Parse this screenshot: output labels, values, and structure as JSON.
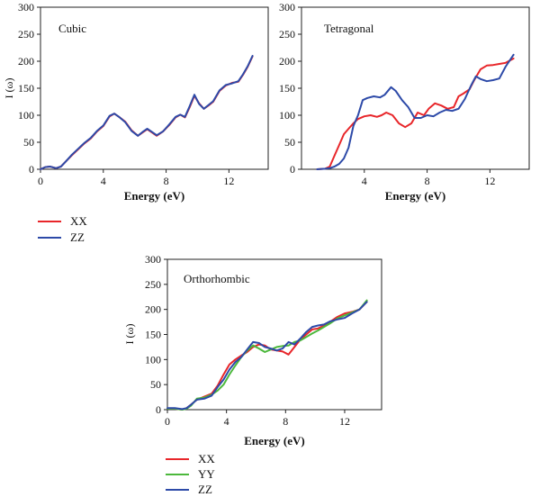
{
  "figure": {
    "legend_top": [
      {
        "label": "XX",
        "color": "#e8262a"
      },
      {
        "label": "ZZ",
        "color": "#2d4aa8"
      }
    ],
    "legend_bottom": [
      {
        "label": "XX",
        "color": "#e8262a"
      },
      {
        "label": "YY",
        "color": "#4cb83c"
      },
      {
        "label": "ZZ",
        "color": "#2d4aa8"
      }
    ]
  },
  "chart_data": [
    {
      "type": "line",
      "title": "Cubic",
      "xlabel": "Energy (eV)",
      "ylabel": "I (ω)",
      "xlim": [
        0,
        14.5
      ],
      "ylim": [
        0,
        300
      ],
      "xticks": [
        0,
        4,
        8,
        12
      ],
      "yticks": [
        0,
        50,
        100,
        150,
        200,
        250,
        300
      ],
      "series": [
        {
          "name": "XX",
          "color": "#e8262a",
          "x": [
            0,
            0.3,
            0.6,
            1.0,
            1.3,
            1.6,
            2.0,
            2.4,
            2.8,
            3.2,
            3.6,
            4.0,
            4.4,
            4.7,
            5.0,
            5.4,
            5.8,
            6.2,
            6.5,
            6.8,
            7.1,
            7.4,
            7.8,
            8.2,
            8.6,
            8.9,
            9.2,
            9.5,
            9.8,
            10.1,
            10.4,
            10.7,
            11.0,
            11.4,
            11.8,
            12.2,
            12.6,
            12.9,
            13.2,
            13.5
          ],
          "y": [
            0,
            4,
            5,
            2,
            5,
            14,
            26,
            37,
            48,
            57,
            70,
            80,
            98,
            103,
            97,
            88,
            72,
            62,
            68,
            74,
            68,
            62,
            70,
            82,
            96,
            101,
            96,
            115,
            136,
            122,
            112,
            118,
            125,
            145,
            155,
            160,
            162,
            175,
            190,
            209
          ]
        },
        {
          "name": "ZZ",
          "color": "#2d4aa8",
          "x": [
            0,
            0.3,
            0.6,
            1.0,
            1.3,
            1.6,
            2.0,
            2.4,
            2.8,
            3.2,
            3.6,
            4.0,
            4.4,
            4.7,
            5.0,
            5.4,
            5.8,
            6.2,
            6.5,
            6.8,
            7.1,
            7.4,
            7.8,
            8.2,
            8.6,
            8.9,
            9.2,
            9.5,
            9.8,
            10.1,
            10.4,
            10.7,
            11.0,
            11.4,
            11.8,
            12.2,
            12.6,
            12.9,
            13.2,
            13.5
          ],
          "y": [
            0,
            4,
            5,
            2,
            5,
            14,
            27,
            38,
            49,
            58,
            71,
            81,
            99,
            103,
            97,
            87,
            71,
            62,
            69,
            75,
            69,
            63,
            70,
            83,
            97,
            101,
            97,
            117,
            138,
            121,
            112,
            119,
            126,
            146,
            156,
            159,
            163,
            176,
            191,
            210
          ]
        }
      ]
    },
    {
      "type": "line",
      "title": "Tetragonal",
      "xlabel": "Energy (eV)",
      "ylabel": "",
      "xlim": [
        0,
        14.5
      ],
      "ylim": [
        0,
        300
      ],
      "xticks": [
        4,
        8,
        12
      ],
      "yticks": [
        0,
        50,
        100,
        150,
        200,
        250,
        300
      ],
      "series": [
        {
          "name": "XX",
          "color": "#e8262a",
          "x": [
            1.0,
            1.5,
            1.8,
            2.1,
            2.4,
            2.7,
            3.0,
            3.3,
            3.6,
            4.0,
            4.4,
            4.8,
            5.1,
            5.4,
            5.8,
            6.2,
            6.6,
            7.0,
            7.4,
            7.8,
            8.1,
            8.5,
            8.9,
            9.3,
            9.7,
            10.0,
            10.3,
            10.7,
            11.0,
            11.4,
            11.8,
            12.2,
            12.6,
            13.0,
            13.5
          ],
          "y": [
            0,
            1,
            5,
            25,
            45,
            65,
            75,
            85,
            93,
            98,
            100,
            97,
            100,
            105,
            100,
            85,
            78,
            85,
            105,
            100,
            112,
            122,
            118,
            112,
            115,
            135,
            140,
            148,
            165,
            185,
            192,
            193,
            195,
            197,
            205
          ]
        },
        {
          "name": "ZZ",
          "color": "#2d4aa8",
          "x": [
            1.0,
            1.5,
            1.8,
            2.1,
            2.4,
            2.7,
            3.0,
            3.3,
            3.6,
            3.9,
            4.2,
            4.6,
            5.0,
            5.3,
            5.7,
            6.0,
            6.4,
            6.8,
            7.2,
            7.6,
            8.0,
            8.4,
            8.8,
            9.2,
            9.6,
            10.0,
            10.4,
            10.8,
            11.1,
            11.4,
            11.8,
            12.2,
            12.6,
            13.0,
            13.5
          ],
          "y": [
            0,
            1,
            2,
            5,
            10,
            20,
            40,
            80,
            100,
            128,
            132,
            135,
            133,
            138,
            152,
            145,
            128,
            115,
            95,
            95,
            100,
            98,
            105,
            110,
            108,
            112,
            130,
            155,
            172,
            167,
            163,
            165,
            168,
            190,
            212
          ]
        }
      ]
    },
    {
      "type": "line",
      "title": "Orthorhombic",
      "xlabel": "Energy (eV)",
      "ylabel": "I (ω)",
      "xlim": [
        0,
        14.5
      ],
      "ylim": [
        0,
        300
      ],
      "xticks": [
        0,
        4,
        8,
        12
      ],
      "yticks": [
        0,
        50,
        100,
        150,
        200,
        250,
        300
      ],
      "series": [
        {
          "name": "XX",
          "color": "#e8262a",
          "x": [
            0,
            0.5,
            1.0,
            1.3,
            1.6,
            2.0,
            2.5,
            3.0,
            3.4,
            3.8,
            4.2,
            4.6,
            5.0,
            5.4,
            5.8,
            6.2,
            6.6,
            7.0,
            7.4,
            7.8,
            8.2,
            8.6,
            9.0,
            9.4,
            9.8,
            10.2,
            10.6,
            11.0,
            11.5,
            12.0,
            12.5,
            13.0,
            13.5
          ],
          "y": [
            2,
            2,
            0,
            3,
            10,
            20,
            26,
            32,
            48,
            70,
            90,
            100,
            108,
            115,
            125,
            130,
            128,
            120,
            118,
            116,
            110,
            125,
            140,
            150,
            160,
            162,
            168,
            175,
            185,
            192,
            195,
            200,
            215
          ]
        },
        {
          "name": "YY",
          "color": "#4cb83c",
          "x": [
            0,
            0.5,
            1.0,
            1.3,
            1.6,
            2.0,
            2.5,
            3.0,
            3.4,
            3.8,
            4.2,
            4.6,
            5.0,
            5.4,
            5.8,
            6.2,
            6.6,
            7.0,
            7.4,
            7.8,
            8.2,
            8.6,
            9.0,
            9.4,
            9.8,
            10.2,
            10.6,
            11.0,
            11.5,
            12.0,
            12.5,
            13.0,
            13.5
          ],
          "y": [
            2,
            2,
            0,
            2,
            8,
            22,
            24,
            30,
            38,
            50,
            70,
            88,
            105,
            118,
            128,
            122,
            115,
            120,
            125,
            127,
            128,
            135,
            138,
            145,
            152,
            158,
            165,
            172,
            182,
            188,
            194,
            200,
            218
          ]
        },
        {
          "name": "ZZ",
          "color": "#2d4aa8",
          "x": [
            0,
            0.5,
            1.0,
            1.3,
            1.6,
            2.0,
            2.5,
            3.0,
            3.4,
            3.8,
            4.2,
            4.6,
            5.0,
            5.4,
            5.8,
            6.2,
            6.6,
            7.0,
            7.4,
            7.8,
            8.2,
            8.6,
            9.0,
            9.4,
            9.8,
            10.2,
            10.6,
            11.0,
            11.5,
            12.0,
            12.5,
            13.0,
            13.5
          ],
          "y": [
            3,
            3,
            1,
            3,
            10,
            20,
            22,
            28,
            45,
            60,
            80,
            95,
            105,
            120,
            135,
            133,
            125,
            122,
            118,
            122,
            135,
            130,
            142,
            155,
            165,
            168,
            170,
            176,
            180,
            183,
            192,
            200,
            215
          ]
        }
      ]
    }
  ]
}
